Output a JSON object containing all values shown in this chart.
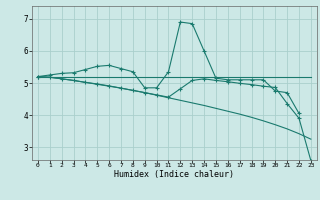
{
  "title": "",
  "xlabel": "Humidex (Indice chaleur)",
  "ylabel": "",
  "bg_color": "#cce8e6",
  "grid_color": "#aacfcc",
  "line_color": "#1a7a6e",
  "xlim": [
    -0.5,
    23.5
  ],
  "ylim": [
    2.6,
    7.4
  ],
  "yticks": [
    3,
    4,
    5,
    6,
    7
  ],
  "xticks": [
    0,
    1,
    2,
    3,
    4,
    5,
    6,
    7,
    8,
    9,
    10,
    11,
    12,
    13,
    14,
    15,
    16,
    17,
    18,
    19,
    20,
    21,
    22,
    23
  ],
  "series": [
    {
      "x": [
        0,
        1,
        2,
        3,
        4,
        5,
        6,
        7,
        8,
        9,
        10,
        11,
        12,
        13,
        14,
        15,
        16,
        17,
        18,
        19,
        20,
        21,
        22
      ],
      "y": [
        5.2,
        5.25,
        5.3,
        5.32,
        5.42,
        5.52,
        5.55,
        5.45,
        5.35,
        4.85,
        4.85,
        5.35,
        6.9,
        6.85,
        6.0,
        5.15,
        5.1,
        5.1,
        5.1,
        5.1,
        4.75,
        4.7,
        4.05
      ],
      "marker": "+"
    },
    {
      "x": [
        0,
        1,
        2,
        3,
        4,
        5,
        6,
        7,
        8,
        9,
        10,
        11,
        12,
        13,
        14,
        15,
        16,
        17,
        18,
        19,
        20,
        21,
        22,
        23
      ],
      "y": [
        5.2,
        5.2,
        5.2,
        5.2,
        5.2,
        5.2,
        5.2,
        5.2,
        5.2,
        5.2,
        5.2,
        5.2,
        5.2,
        5.2,
        5.2,
        5.2,
        5.2,
        5.2,
        5.2,
        5.2,
        5.2,
        5.2,
        5.2,
        5.2
      ],
      "marker": null
    },
    {
      "x": [
        0,
        1,
        2,
        3,
        4,
        5,
        6,
        7,
        8,
        9,
        10,
        11,
        12,
        13,
        14,
        15,
        16,
        17,
        18,
        19,
        20,
        21,
        22,
        23
      ],
      "y": [
        5.2,
        5.18,
        5.13,
        5.08,
        5.02,
        4.97,
        4.91,
        4.84,
        4.77,
        4.7,
        4.62,
        4.54,
        4.46,
        4.38,
        4.3,
        4.21,
        4.12,
        4.03,
        3.93,
        3.82,
        3.7,
        3.57,
        3.42,
        3.25
      ],
      "marker": null
    },
    {
      "x": [
        0,
        1,
        2,
        3,
        4,
        5,
        6,
        7,
        8,
        9,
        10,
        11,
        12,
        13,
        14,
        15,
        16,
        17,
        18,
        19,
        20,
        21,
        22,
        23
      ],
      "y": [
        5.2,
        5.18,
        5.13,
        5.08,
        5.02,
        4.96,
        4.9,
        4.84,
        4.77,
        4.7,
        4.63,
        4.56,
        4.82,
        5.08,
        5.13,
        5.08,
        5.04,
        4.99,
        4.95,
        4.9,
        4.86,
        4.36,
        3.9,
        2.58
      ],
      "marker": "+"
    }
  ]
}
